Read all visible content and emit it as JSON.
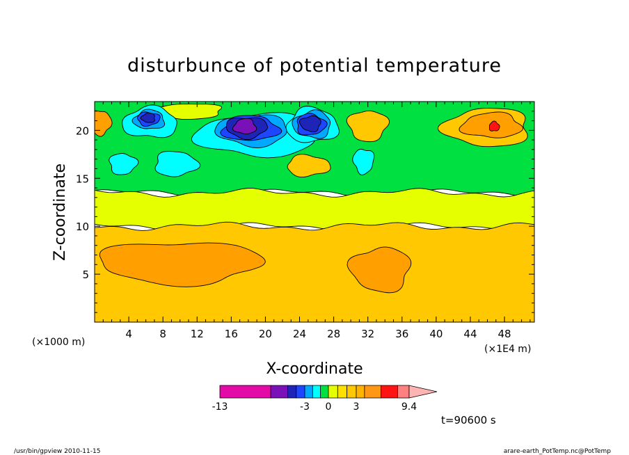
{
  "chart_data": {
    "type": "heatmap",
    "title": "disturbunce of potential temperature",
    "xlabel": "X-coordinate",
    "ylabel": "Z-coordinate",
    "x_units": "(×1000 m)",
    "x_multiplier": "(×1E4 m)",
    "xlim": [
      0,
      51.5
    ],
    "ylim": [
      0,
      23
    ],
    "x_ticks": [
      4,
      8,
      12,
      16,
      20,
      24,
      28,
      32,
      36,
      40,
      44,
      48
    ],
    "y_ticks": [
      5,
      10,
      15,
      20
    ],
    "x_tick_labels": [
      "4",
      "8",
      "12",
      "16",
      "20",
      "24",
      "28",
      "32",
      "36",
      "40",
      "44",
      "48"
    ],
    "y_tick_labels": [
      "5",
      "10",
      "15",
      "20"
    ],
    "grid": false,
    "legend": "bottom",
    "colorbar": {
      "levels": [
        -13,
        -7,
        -5,
        -4,
        -3,
        -2,
        -1,
        0,
        1,
        2,
        3,
        4,
        6,
        8,
        9.4
      ],
      "tick_labels": [
        "-13",
        "-3",
        "0",
        "3",
        "9.4"
      ],
      "colors": [
        "#e40aa8",
        "#7a10b8",
        "#1e24b8",
        "#1e46ff",
        "#00a8ff",
        "#00ffff",
        "#00e040",
        "#e6ff00",
        "#ffe000",
        "#ffc800",
        "#ffb400",
        "#ff9614",
        "#ff1414",
        "#ff8080",
        "#ffb4b4"
      ]
    },
    "regions": [
      {
        "kind": "band",
        "value": -0.5,
        "color": "#00e040",
        "z": [
          13.5,
          23
        ]
      },
      {
        "kind": "band",
        "value": 0.5,
        "color": "#e6ff00",
        "z": [
          10,
          13.5
        ]
      },
      {
        "kind": "band",
        "value": 1.5,
        "color": "#ffc800",
        "z": [
          0,
          10
        ]
      },
      {
        "kind": "blob",
        "value": 2.5,
        "color": "#ffa000",
        "center": [
          10,
          6.2
        ],
        "rx": 9.5,
        "rz": 2.2
      },
      {
        "kind": "blob",
        "value": 2.5,
        "color": "#ffa000",
        "center": [
          33.5,
          5.5
        ],
        "rx": 3.5,
        "rz": 2.3
      },
      {
        "kind": "blob",
        "value": 1.5,
        "color": "#ffc800",
        "center": [
          46,
          20.3
        ],
        "rx": 5,
        "rz": 2
      },
      {
        "kind": "blob",
        "value": 2.5,
        "color": "#ffa000",
        "center": [
          46.5,
          20.5
        ],
        "rx": 3.5,
        "rz": 1.3
      },
      {
        "kind": "blob",
        "value": 4,
        "color": "#ff1414",
        "center": [
          46.8,
          20.4
        ],
        "rx": 0.6,
        "rz": 0.5
      },
      {
        "kind": "blob",
        "value": 1.5,
        "color": "#ffc800",
        "center": [
          25,
          16.3
        ],
        "rx": 2.5,
        "rz": 1.1
      },
      {
        "kind": "blob",
        "value": 2.5,
        "color": "#ffa000",
        "center": [
          0.7,
          20.8
        ],
        "rx": 1.2,
        "rz": 1.3
      },
      {
        "kind": "blob",
        "value": 1.5,
        "color": "#ffc800",
        "center": [
          32,
          20.5
        ],
        "rx": 2.3,
        "rz": 1.6
      },
      {
        "kind": "blob",
        "value": 0.5,
        "color": "#e6ff00",
        "center": [
          11,
          22
        ],
        "rx": 4,
        "rz": 0.8
      },
      {
        "kind": "blob",
        "value": -1.5,
        "color": "#00ffff",
        "center": [
          19,
          19.5
        ],
        "rx": 7,
        "rz": 2.2
      },
      {
        "kind": "blob",
        "value": -1.5,
        "color": "#00ffff",
        "center": [
          6.5,
          20.8
        ],
        "rx": 3.2,
        "rz": 1.6
      },
      {
        "kind": "blob",
        "value": -1.5,
        "color": "#00ffff",
        "center": [
          25.5,
          20.5
        ],
        "rx": 3,
        "rz": 1.8
      },
      {
        "kind": "blob",
        "value": -1.5,
        "color": "#00ffff",
        "center": [
          9.5,
          16.5
        ],
        "rx": 2.5,
        "rz": 1.3
      },
      {
        "kind": "blob",
        "value": -1.5,
        "color": "#00ffff",
        "center": [
          3.3,
          16.5
        ],
        "rx": 1.6,
        "rz": 1.1
      },
      {
        "kind": "blob",
        "value": -1.5,
        "color": "#00ffff",
        "center": [
          31.5,
          16.8
        ],
        "rx": 1.2,
        "rz": 1.3
      },
      {
        "kind": "blob",
        "value": -2.5,
        "color": "#00a8ff",
        "center": [
          18.5,
          20
        ],
        "rx": 4.2,
        "rz": 1.6
      },
      {
        "kind": "blob",
        "value": -2.5,
        "color": "#00a8ff",
        "center": [
          25.5,
          20.6
        ],
        "rx": 2.2,
        "rz": 1.4
      },
      {
        "kind": "blob",
        "value": -2.5,
        "color": "#00a8ff",
        "center": [
          6.4,
          21.1
        ],
        "rx": 1.8,
        "rz": 1
      },
      {
        "kind": "blob",
        "value": -3.5,
        "color": "#1e46ff",
        "center": [
          18.2,
          20.2
        ],
        "rx": 3.3,
        "rz": 1.3
      },
      {
        "kind": "blob",
        "value": -3.5,
        "color": "#1e46ff",
        "center": [
          25.3,
          20.6
        ],
        "rx": 1.7,
        "rz": 1.1
      },
      {
        "kind": "blob",
        "value": -3.5,
        "color": "#1e46ff",
        "center": [
          6.3,
          21.2
        ],
        "rx": 1.3,
        "rz": 0.7
      },
      {
        "kind": "blob",
        "value": -4.5,
        "color": "#1e24b8",
        "center": [
          17.8,
          20.3
        ],
        "rx": 2.4,
        "rz": 1.1
      },
      {
        "kind": "blob",
        "value": -4.5,
        "color": "#1e24b8",
        "center": [
          25.3,
          20.7
        ],
        "rx": 1.2,
        "rz": 0.8
      },
      {
        "kind": "blob",
        "value": -4.5,
        "color": "#1e24b8",
        "center": [
          6.3,
          21.3
        ],
        "rx": 0.8,
        "rz": 0.5
      },
      {
        "kind": "blob",
        "value": -6,
        "color": "#7a10b8",
        "center": [
          17.6,
          20.4
        ],
        "rx": 1.3,
        "rz": 0.8
      }
    ]
  },
  "footer": {
    "left": "/usr/bin/gpview 2010-11-15",
    "right": "arare-earth_PotTemp.nc@PotTemp",
    "time": "t=90600 s"
  }
}
